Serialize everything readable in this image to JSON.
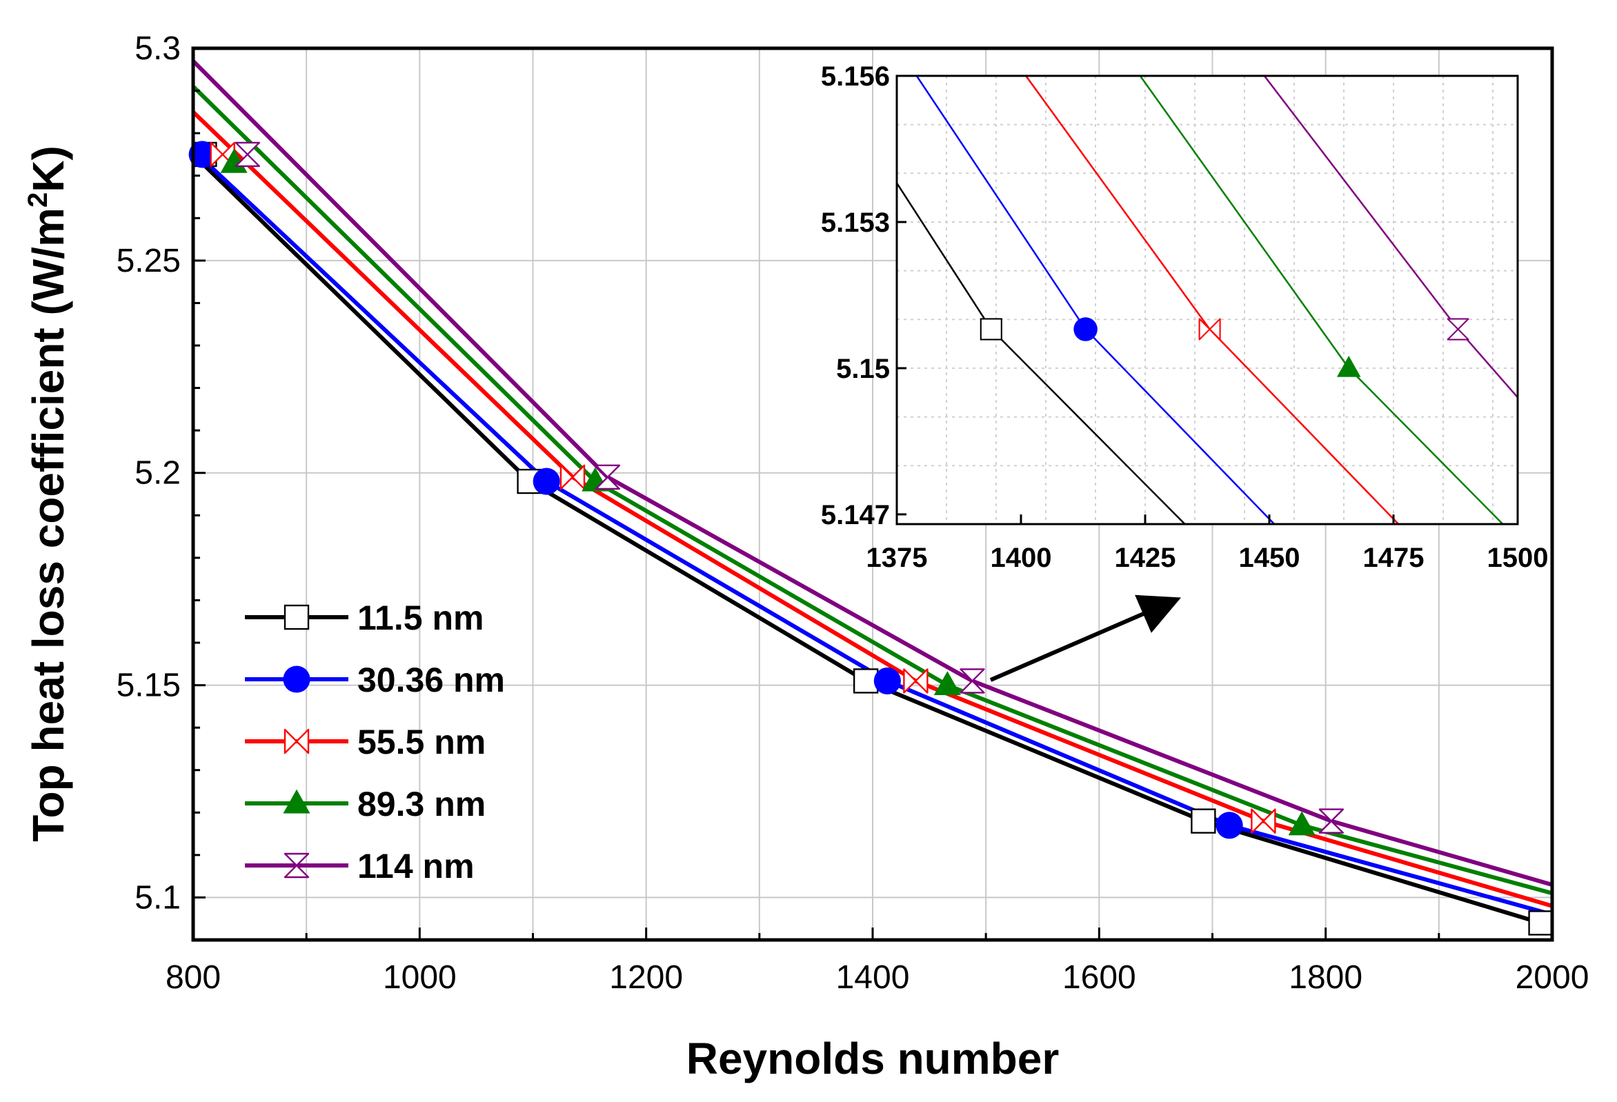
{
  "chart_data": {
    "type": "line",
    "title": "",
    "xlabel": "Reynolds number",
    "ylabel_parts": {
      "pre": "Top heat loss coefficient (W/m",
      "sup": "2",
      "post": "K)"
    },
    "xlim": [
      800,
      2000
    ],
    "ylim": [
      5.09,
      5.3
    ],
    "x_ticks": [
      800,
      1000,
      1200,
      1400,
      1600,
      1800,
      2000
    ],
    "x_tick_labels": [
      "800",
      "1000",
      "1200",
      "1400",
      "1600",
      "1800",
      "2000"
    ],
    "y_ticks": [
      5.1,
      5.15,
      5.2,
      5.25,
      5.3
    ],
    "y_tick_labels": [
      "5.1",
      "5.15",
      "5.2",
      "5.25",
      "5.3"
    ],
    "grid": true,
    "legend_position": "lower-left",
    "series": [
      {
        "name": "11.5 nm",
        "color": "#000000",
        "marker": "square-open",
        "x": [
          800,
          1097,
          1394,
          1692,
          1990,
          2000
        ],
        "y": [
          5.275,
          5.198,
          5.151,
          5.118,
          5.094,
          5.094
        ]
      },
      {
        "name": "30.36 nm",
        "color": "#0000ff",
        "marker": "circle-filled",
        "x": [
          800,
          1112,
          1413,
          1715,
          2000
        ],
        "y": [
          5.276,
          5.198,
          5.151,
          5.117,
          5.096
        ]
      },
      {
        "name": "55.5 nm",
        "color": "#ff0000",
        "marker": "bowtie-h",
        "x": [
          800,
          1135,
          1438,
          1745,
          2000
        ],
        "y": [
          5.285,
          5.199,
          5.151,
          5.118,
          5.098
        ]
      },
      {
        "name": "89.3 nm",
        "color": "#008000",
        "marker": "triangle-filled",
        "x": [
          800,
          1155,
          1466,
          1779,
          2000
        ],
        "y": [
          5.291,
          5.198,
          5.15,
          5.117,
          5.101
        ]
      },
      {
        "name": "114 nm",
        "color": "#800080",
        "marker": "bowtie-v",
        "x": [
          800,
          1166,
          1488,
          1805,
          2000
        ],
        "y": [
          5.297,
          5.199,
          5.151,
          5.118,
          5.103
        ]
      }
    ],
    "markers": [
      {
        "series": 0,
        "x": 810,
        "y": 5.275
      },
      {
        "series": 0,
        "x": 1097,
        "y": 5.198
      },
      {
        "series": 0,
        "x": 1394,
        "y": 5.151
      },
      {
        "series": 0,
        "x": 1692,
        "y": 5.118
      },
      {
        "series": 0,
        "x": 1990,
        "y": 5.094
      },
      {
        "series": 1,
        "x": 808,
        "y": 5.275
      },
      {
        "series": 1,
        "x": 1112,
        "y": 5.198
      },
      {
        "series": 1,
        "x": 1413,
        "y": 5.151
      },
      {
        "series": 1,
        "x": 1715,
        "y": 5.117
      },
      {
        "series": 2,
        "x": 826,
        "y": 5.275
      },
      {
        "series": 2,
        "x": 1135,
        "y": 5.199
      },
      {
        "series": 2,
        "x": 1438,
        "y": 5.151
      },
      {
        "series": 2,
        "x": 1745,
        "y": 5.118
      },
      {
        "series": 3,
        "x": 836,
        "y": 5.273
      },
      {
        "series": 3,
        "x": 1155,
        "y": 5.198
      },
      {
        "series": 3,
        "x": 1466,
        "y": 5.15
      },
      {
        "series": 3,
        "x": 1779,
        "y": 5.117
      },
      {
        "series": 4,
        "x": 848,
        "y": 5.275
      },
      {
        "series": 4,
        "x": 1166,
        "y": 5.199
      },
      {
        "series": 4,
        "x": 1488,
        "y": 5.151
      },
      {
        "series": 4,
        "x": 1805,
        "y": 5.118
      }
    ],
    "inset": {
      "xlim": [
        1375,
        1500
      ],
      "ylim": [
        5.1468,
        5.156
      ],
      "x_ticks": [
        1375,
        1400,
        1425,
        1450,
        1475,
        1500
      ],
      "x_tick_labels": [
        "1375",
        "1400",
        "1425",
        "1450",
        "1475",
        "1500"
      ],
      "y_ticks": [
        5.147,
        5.15,
        5.153,
        5.156
      ],
      "y_tick_labels": [
        "5.147",
        "5.15",
        "5.153",
        "5.156"
      ],
      "grid": "dotted",
      "series": [
        {
          "name": "11.5 nm",
          "color": "#000000",
          "x": [
            1375,
            1394,
            1433
          ],
          "y": [
            5.1538,
            5.1508,
            5.1468
          ]
        },
        {
          "name": "30.36 nm",
          "color": "#0000ff",
          "x": [
            1379,
            1413,
            1451
          ],
          "y": [
            5.156,
            5.1508,
            5.1468
          ]
        },
        {
          "name": "55.5 nm",
          "color": "#ff0000",
          "x": [
            1401,
            1438,
            1476
          ],
          "y": [
            5.156,
            5.1508,
            5.1468
          ]
        },
        {
          "name": "89.3 nm",
          "color": "#008000",
          "x": [
            1424,
            1466,
            1497
          ],
          "y": [
            5.156,
            5.15,
            5.1468
          ]
        },
        {
          "name": "114 nm",
          "color": "#800080",
          "x": [
            1449,
            1488,
            1500
          ],
          "y": [
            5.156,
            5.1508,
            5.1494
          ]
        }
      ],
      "markers": [
        {
          "series": 0,
          "x": 1394,
          "y": 5.1508
        },
        {
          "series": 1,
          "x": 1413,
          "y": 5.1508
        },
        {
          "series": 2,
          "x": 1438,
          "y": 5.1508
        },
        {
          "series": 3,
          "x": 1466,
          "y": 5.15
        },
        {
          "series": 4,
          "x": 1488,
          "y": 5.1508
        }
      ]
    },
    "annotation": {
      "type": "arrow",
      "from": {
        "x": 1500,
        "y": 5.151
      },
      "to": "inset"
    }
  }
}
